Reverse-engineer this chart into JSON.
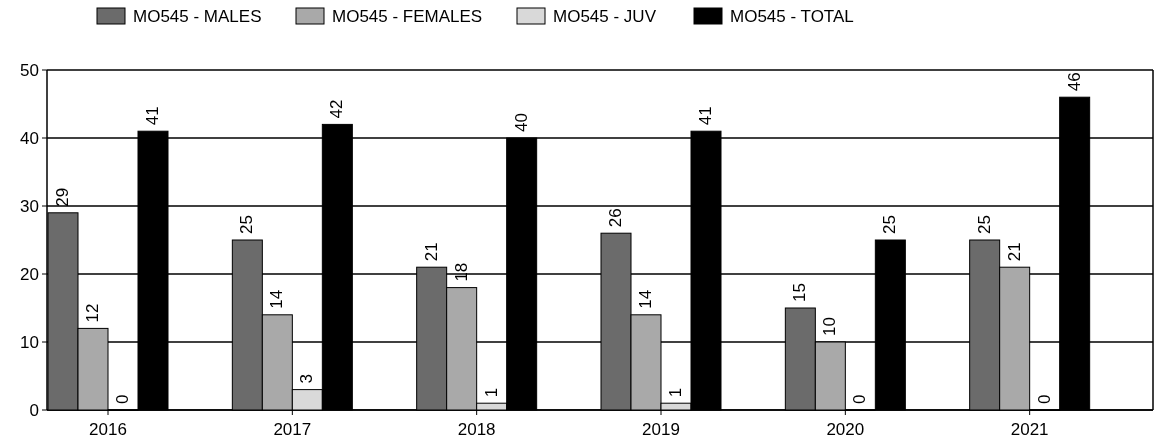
{
  "chart_data": {
    "type": "bar",
    "categories": [
      "2016",
      "2017",
      "2018",
      "2019",
      "2020",
      "2021"
    ],
    "series": [
      {
        "name": "MO545 - MALES",
        "color": "#6b6b6b",
        "values": [
          29,
          25,
          21,
          26,
          15,
          25
        ]
      },
      {
        "name": "MO545 - FEMALES",
        "color": "#a9a9a9",
        "values": [
          12,
          14,
          18,
          14,
          10,
          21
        ]
      },
      {
        "name": "MO545 - JUV",
        "color": "#d9d9d9",
        "values": [
          0,
          3,
          1,
          1,
          0,
          0
        ]
      },
      {
        "name": "MO545 - TOTAL",
        "color": "#000000",
        "values": [
          41,
          42,
          40,
          41,
          25,
          46
        ]
      }
    ],
    "ylim": [
      0,
      50
    ],
    "yticks": [
      0,
      10,
      20,
      30,
      40,
      50
    ],
    "grid": "y",
    "legend": "top",
    "data_labels": true
  }
}
